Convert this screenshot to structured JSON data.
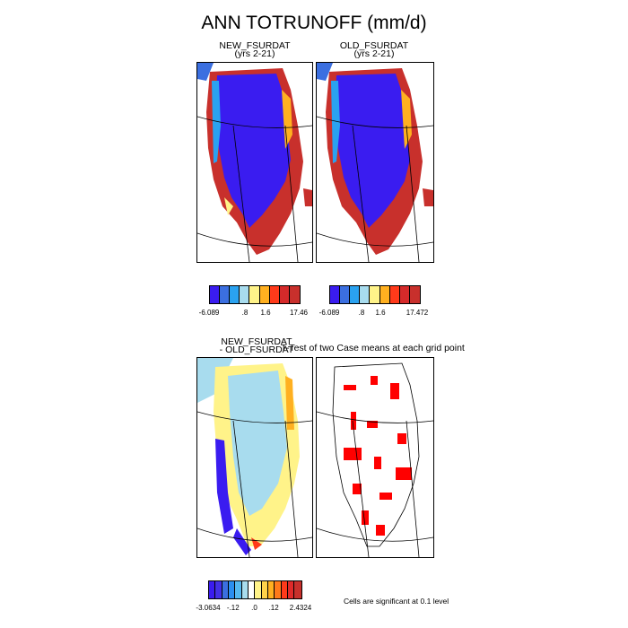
{
  "main_title": "ANN TOTRUNOFF (mm/d)",
  "panels": [
    {
      "id": "new",
      "title": "NEW_FSURDAT",
      "subtitle": "(yrs 2-21)"
    },
    {
      "id": "old",
      "title": "OLD_FSURDAT",
      "subtitle": "(yrs 2-21)"
    },
    {
      "id": "diff",
      "title": "NEW_FSURDAT",
      "subtitle": "- OLD_FSURDAT"
    },
    {
      "id": "ttest",
      "title": "T-Test of two Case means at each grid point",
      "subtitle": ""
    }
  ],
  "colorbars": {
    "new": {
      "colors": [
        "#3a1cf0",
        "#3b6fe0",
        "#2aa2f0",
        "#a8dcee",
        "#fff389",
        "#ffb020",
        "#ff3a1a",
        "#d52a2a",
        "#c8302c"
      ],
      "tick_labels": [
        "-6.089",
        ".8",
        "1.6",
        "17.46"
      ]
    },
    "old": {
      "colors": [
        "#3a1cf0",
        "#3b6fe0",
        "#2aa2f0",
        "#a8dcee",
        "#fff389",
        "#ffb020",
        "#ff3a1a",
        "#d52a2a",
        "#c8302c"
      ],
      "tick_labels": [
        "-6.089",
        ".8",
        "1.6",
        "17.472"
      ]
    },
    "diff": {
      "colors": [
        "#3a1cf0",
        "#4330e6",
        "#3b6fe0",
        "#2b8ef0",
        "#55b8f0",
        "#a8dcee",
        "#ffffff",
        "#fff389",
        "#ffd24a",
        "#ffb020",
        "#ff7a1a",
        "#ff3a1a",
        "#e02a2a",
        "#c8302c"
      ],
      "tick_labels": [
        "-3.0634",
        "-.12",
        ".0",
        ".12",
        "2.4324"
      ]
    }
  },
  "significance_note": "Cells are significant at 0.1 level"
}
